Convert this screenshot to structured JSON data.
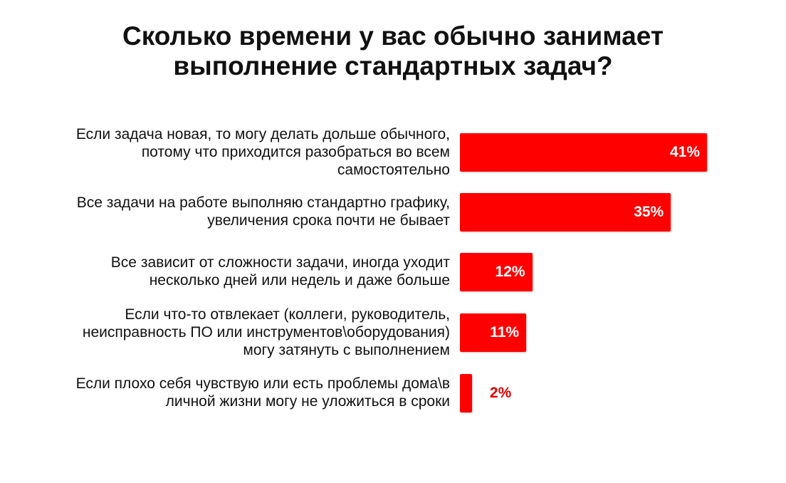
{
  "title_lines": [
    "Сколько времени у вас обычно занимает",
    "выполнение стандартных задач?"
  ],
  "colors": {
    "bar": "#ff0000",
    "value_inside": "#ffffff",
    "value_outside": "#e00000",
    "text": "#111111"
  },
  "chart_data": {
    "type": "bar",
    "orientation": "horizontal",
    "title": "Сколько времени у вас обычно занимает выполнение стандартных задач?",
    "categories": [
      "Если задача новая, то могу делать дольше обычного, потому что приходится разобраться во всем самостоятельно",
      "Все задачи на работе выполняю стандартно графику, увеличения срока почти не бывает",
      "Все зависит от сложности задачи, иногда уходит несколько дней или недель и даже больше",
      "Если что-то отвлекает (коллеги, руководитель, неисправность ПО или инструментов\\оборудования) могу затянуть с выполнением",
      "Если плохо себя чувствую или есть проблемы дома\\в личной жизни могу не уложиться в сроки"
    ],
    "category_lines": [
      [
        "Если задача новая, то могу делать дольше обычного,",
        "потому что приходится разобраться во всем",
        "самостоятельно"
      ],
      [
        "Все задачи на работе выполняю стандартно графику,",
        "увеличения срока почти не бывает"
      ],
      [
        "Все зависит от сложности задачи, иногда уходит",
        "несколько дней или недель и даже больше"
      ],
      [
        "Если что-то отвлекает (коллеги, руководитель,",
        "неисправность ПО или инструментов\\оборудования)",
        "могу затянуть с выполнением"
      ],
      [
        "Если плохо себя чувствую или есть проблемы дома\\в",
        "личной жизни могу не уложиться в сроки"
      ]
    ],
    "values": [
      41,
      35,
      12,
      11,
      2
    ],
    "value_labels": [
      "41%",
      "35%",
      "12%",
      "11%",
      "2%"
    ],
    "unit": "%",
    "xlim": [
      0,
      41
    ],
    "grid": false,
    "legend": "none"
  }
}
